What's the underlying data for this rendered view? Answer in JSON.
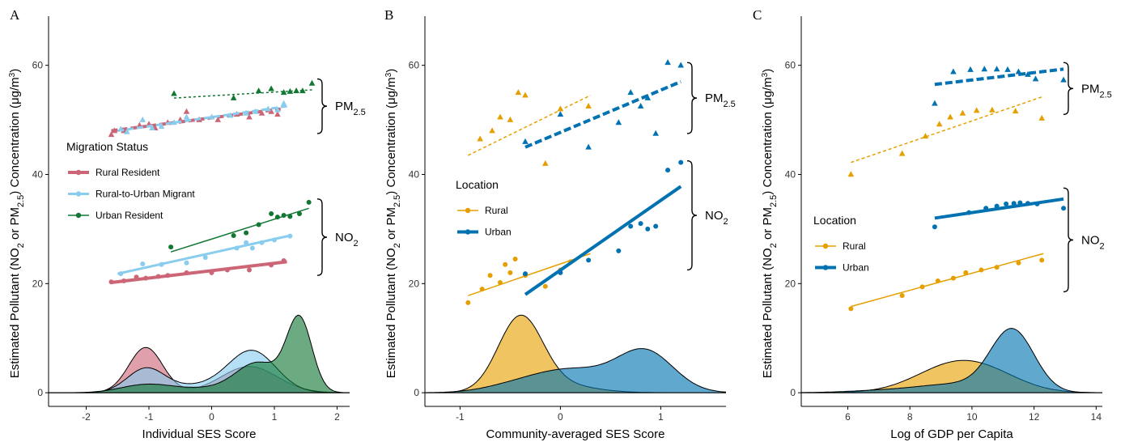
{
  "y_axis_label": "Estimated Pollutant (NO2 or PM2.5) Concentration (μg/m3)",
  "colors": {
    "rural_resident": "#CC6677",
    "migrant": "#88CCEE",
    "urban_resident": "#117733",
    "rural": "#E69F00",
    "urban": "#0072B2"
  },
  "chart_data": [
    {
      "panel": "A",
      "type": "scatter",
      "xlabel": "Individual SES Score",
      "xlim": [
        -2.6,
        2.2
      ],
      "ylim": [
        -2.5,
        69
      ],
      "xticks": [
        -2,
        -1,
        0,
        1,
        2
      ],
      "yticks": [
        0,
        20,
        40,
        60
      ],
      "legend": {
        "title": "Migration Status",
        "position": "left-center",
        "items": [
          "Rural Resident",
          "Rural-to-Urban Migrant",
          "Urban Resident"
        ]
      },
      "brackets": [
        {
          "label": "PM2.5",
          "y_range": [
            47.5,
            57.5
          ]
        },
        {
          "label": "NO2",
          "y_range": [
            21.5,
            35.5
          ]
        }
      ],
      "series": [
        {
          "name": "Rural Resident",
          "pollutant": "PM2.5",
          "color": "#CC6677",
          "points": [
            [
              -1.6,
              47.3
            ],
            [
              -1.55,
              48.0
            ],
            [
              -1.4,
              48.0
            ],
            [
              -1.15,
              49.0
            ],
            [
              -1.0,
              49.2
            ],
            [
              -0.9,
              48.5
            ],
            [
              -0.7,
              49.5
            ],
            [
              -0.5,
              50.0
            ],
            [
              -0.4,
              51.5
            ],
            [
              -0.2,
              50.0
            ],
            [
              0.1,
              50.0
            ],
            [
              0.4,
              51.0
            ],
            [
              0.6,
              50.5
            ],
            [
              0.8,
              51.2
            ],
            [
              0.95,
              51.5
            ],
            [
              1.05,
              51.0
            ]
          ],
          "fit": [
            [
              -1.6,
              48.0
            ],
            [
              1.1,
              52.0
            ]
          ]
        },
        {
          "name": "Rural-to-Urban Migrant",
          "pollutant": "PM2.5",
          "color": "#88CCEE",
          "points": [
            [
              -1.45,
              48.3
            ],
            [
              -1.35,
              47.8
            ],
            [
              -1.1,
              50.0
            ],
            [
              -0.95,
              48.5
            ],
            [
              -0.8,
              48.8
            ],
            [
              -0.6,
              49.5
            ],
            [
              -0.4,
              50.5
            ],
            [
              0.0,
              50.5
            ],
            [
              0.3,
              50.8
            ],
            [
              0.55,
              51.2
            ],
            [
              0.7,
              51.5
            ],
            [
              0.9,
              52.0
            ],
            [
              1.05,
              51.8
            ],
            [
              1.15,
              53.0
            ]
          ],
          "fit": [
            [
              -1.5,
              48.0
            ],
            [
              1.2,
              52.5
            ]
          ]
        },
        {
          "name": "Urban Resident",
          "pollutant": "PM2.5",
          "color": "#117733",
          "points": [
            [
              -0.6,
              54.8
            ],
            [
              0.35,
              54.0
            ],
            [
              0.75,
              55.3
            ],
            [
              0.95,
              55.7
            ],
            [
              1.15,
              55.0
            ],
            [
              1.25,
              55.2
            ],
            [
              1.35,
              55.3
            ],
            [
              1.45,
              55.3
            ],
            [
              1.6,
              56.7
            ]
          ],
          "fit": [
            [
              -0.6,
              54.0
            ],
            [
              1.6,
              55.5
            ]
          ]
        },
        {
          "name": "Rural Resident",
          "pollutant": "NO2",
          "color": "#CC6677",
          "points": [
            [
              -1.6,
              20.3
            ],
            [
              -1.4,
              20.5
            ],
            [
              -1.2,
              21.2
            ],
            [
              -1.05,
              21.0
            ],
            [
              -0.85,
              21.3
            ],
            [
              -0.7,
              21.5
            ],
            [
              -0.4,
              22.0
            ],
            [
              0.0,
              22.0
            ],
            [
              0.25,
              22.5
            ],
            [
              0.6,
              22.5
            ],
            [
              0.95,
              23.4
            ],
            [
              1.15,
              24.2
            ]
          ],
          "fit": [
            [
              -1.6,
              20.2
            ],
            [
              1.2,
              24.0
            ]
          ]
        },
        {
          "name": "Rural-to-Urban Migrant",
          "pollutant": "NO2",
          "color": "#88CCEE",
          "points": [
            [
              -1.45,
              21.8
            ],
            [
              -1.1,
              23.6
            ],
            [
              -0.8,
              23.5
            ],
            [
              -0.4,
              23.8
            ],
            [
              -0.1,
              24.8
            ],
            [
              0.4,
              26.5
            ],
            [
              0.55,
              27.5
            ],
            [
              0.65,
              26.5
            ],
            [
              0.8,
              27.5
            ],
            [
              1.0,
              28.0
            ],
            [
              1.25,
              28.7
            ]
          ],
          "fit": [
            [
              -1.5,
              21.8
            ],
            [
              1.25,
              28.8
            ]
          ]
        },
        {
          "name": "Urban Resident",
          "pollutant": "NO2",
          "color": "#117733",
          "points": [
            [
              -0.65,
              26.7
            ],
            [
              0.35,
              28.8
            ],
            [
              0.55,
              29.3
            ],
            [
              0.75,
              30.8
            ],
            [
              0.95,
              32.8
            ],
            [
              1.05,
              32.2
            ],
            [
              1.15,
              32.5
            ],
            [
              1.25,
              32.3
            ],
            [
              1.4,
              32.8
            ],
            [
              1.55,
              34.9
            ]
          ],
          "fit": [
            [
              -0.65,
              25.8
            ],
            [
              1.55,
              33.8
            ]
          ]
        }
      ],
      "densities": [
        {
          "name": "Rural Resident",
          "color": "#CC6677",
          "peaks": [
            [
              -1.05,
              8.3,
              0.27
            ],
            [
              0.6,
              4.8,
              0.45
            ]
          ]
        },
        {
          "name": "Rural-to-Urban Migrant",
          "color": "#88CCEE",
          "peaks": [
            [
              -1.05,
              4.3,
              0.3
            ],
            [
              0.65,
              7.5,
              0.38
            ],
            [
              -0.2,
              1.2,
              0.5
            ]
          ]
        },
        {
          "name": "Urban Resident",
          "color": "#117733",
          "peaks": [
            [
              -1.05,
              1.4,
              0.4
            ],
            [
              0.75,
              5.2,
              0.35
            ],
            [
              1.4,
              13.2,
              0.2
            ],
            [
              0.0,
              0.8,
              0.6
            ]
          ]
        }
      ]
    },
    {
      "panel": "B",
      "type": "scatter",
      "xlabel": "Community-averaged SES Score",
      "xlim": [
        -1.35,
        1.65
      ],
      "ylim": [
        -2.5,
        69
      ],
      "xticks": [
        -1,
        0,
        1
      ],
      "yticks": [
        0,
        20,
        40,
        60
      ],
      "legend": {
        "title": "Location",
        "position": "left-center",
        "items": [
          "Rural",
          "Urban"
        ]
      },
      "brackets": [
        {
          "label": "PM2.5",
          "y_range": [
            47.5,
            60.5
          ]
        },
        {
          "label": "NO2",
          "y_range": [
            22.5,
            42.5
          ]
        }
      ],
      "series": [
        {
          "name": "Rural",
          "pollutant": "PM2.5",
          "color": "#E69F00",
          "points": [
            [
              -0.8,
              46.5
            ],
            [
              -0.68,
              48.0
            ],
            [
              -0.6,
              50.5
            ],
            [
              -0.5,
              50.0
            ],
            [
              -0.42,
              55.0
            ],
            [
              -0.35,
              54.5
            ],
            [
              -0.15,
              42.0
            ],
            [
              0.0,
              52.0
            ],
            [
              0.28,
              52.5
            ]
          ],
          "fit": [
            [
              -0.92,
              43.5
            ],
            [
              0.3,
              54.5
            ]
          ]
        },
        {
          "name": "Urban",
          "pollutant": "PM2.5",
          "color": "#0072B2",
          "points": [
            [
              -0.35,
              46.0
            ],
            [
              0.0,
              51.0
            ],
            [
              0.28,
              45.0
            ],
            [
              0.58,
              49.5
            ],
            [
              0.7,
              55.0
            ],
            [
              0.8,
              52.5
            ],
            [
              0.87,
              54.0
            ],
            [
              0.95,
              47.5
            ],
            [
              1.07,
              60.5
            ],
            [
              1.2,
              60.0
            ]
          ],
          "fit": [
            [
              -0.35,
              45.0
            ],
            [
              1.2,
              57.0
            ]
          ]
        },
        {
          "name": "Rural",
          "pollutant": "NO2",
          "color": "#E69F00",
          "points": [
            [
              -0.92,
              16.5
            ],
            [
              -0.78,
              19.0
            ],
            [
              -0.7,
              21.5
            ],
            [
              -0.6,
              20.2
            ],
            [
              -0.55,
              23.5
            ],
            [
              -0.5,
              22.0
            ],
            [
              -0.45,
              24.5
            ],
            [
              -0.35,
              21.5
            ],
            [
              -0.15,
              19.5
            ],
            [
              0.0,
              22.5
            ],
            [
              0.1,
              24.0
            ]
          ],
          "fit": [
            [
              -0.92,
              17.8
            ],
            [
              0.3,
              25.5
            ]
          ]
        },
        {
          "name": "Urban",
          "pollutant": "NO2",
          "color": "#0072B2",
          "points": [
            [
              -0.35,
              21.8
            ],
            [
              0.0,
              22.0
            ],
            [
              0.28,
              24.3
            ],
            [
              0.58,
              26.0
            ],
            [
              0.7,
              30.5
            ],
            [
              0.8,
              31.0
            ],
            [
              0.87,
              30.0
            ],
            [
              0.95,
              30.5
            ],
            [
              1.07,
              40.8
            ],
            [
              1.2,
              42.2
            ]
          ],
          "fit": [
            [
              -0.35,
              18.0
            ],
            [
              1.2,
              37.8
            ]
          ]
        }
      ],
      "densities": [
        {
          "name": "Rural",
          "color": "#E69F00",
          "peaks": [
            [
              -0.4,
              13.3,
              0.22
            ],
            [
              -0.05,
              1.5,
              0.35
            ]
          ]
        },
        {
          "name": "Urban",
          "color": "#0072B2",
          "peaks": [
            [
              0.85,
              7.3,
              0.28
            ],
            [
              0.1,
              4.2,
              0.4
            ],
            [
              -0.5,
              0.8,
              0.3
            ]
          ]
        }
      ]
    },
    {
      "panel": "C",
      "type": "scatter",
      "xlabel": "Log of GDP per Capita",
      "xlim": [
        4.5,
        14.2
      ],
      "ylim": [
        -2.5,
        69
      ],
      "xticks": [
        6,
        8,
        10,
        12,
        14
      ],
      "yticks": [
        0,
        20,
        40,
        60
      ],
      "legend": {
        "title": "Location",
        "position": "left-center",
        "items": [
          "Rural",
          "Urban"
        ]
      },
      "brackets": [
        {
          "label": "PM2.5",
          "y_range": [
            51.0,
            60.5
          ]
        },
        {
          "label": "NO2",
          "y_range": [
            18.5,
            37.5
          ]
        }
      ],
      "series": [
        {
          "name": "Rural",
          "pollutant": "PM2.5",
          "color": "#E69F00",
          "points": [
            [
              6.1,
              40.0
            ],
            [
              7.75,
              43.8
            ],
            [
              8.5,
              47.0
            ],
            [
              8.95,
              49.2
            ],
            [
              9.3,
              50.5
            ],
            [
              9.7,
              51.2
            ],
            [
              10.15,
              51.7
            ],
            [
              10.65,
              51.8
            ],
            [
              11.4,
              51.6
            ],
            [
              12.25,
              50.3
            ]
          ],
          "fit": [
            [
              6.1,
              42.2
            ],
            [
              12.3,
              54.3
            ]
          ]
        },
        {
          "name": "Urban",
          "pollutant": "PM2.5",
          "color": "#0072B2",
          "points": [
            [
              8.8,
              53.0
            ],
            [
              9.4,
              58.8
            ],
            [
              9.95,
              59.2
            ],
            [
              10.4,
              59.3
            ],
            [
              10.8,
              59.3
            ],
            [
              11.15,
              59.2
            ],
            [
              11.5,
              58.8
            ],
            [
              11.8,
              58.3
            ],
            [
              12.05,
              57.5
            ],
            [
              12.95,
              57.3
            ]
          ],
          "fit": [
            [
              8.8,
              56.5
            ],
            [
              12.95,
              59.3
            ]
          ]
        },
        {
          "name": "Rural",
          "pollutant": "NO2",
          "color": "#E69F00",
          "points": [
            [
              6.1,
              15.4
            ],
            [
              7.75,
              17.8
            ],
            [
              8.4,
              19.4
            ],
            [
              8.9,
              20.5
            ],
            [
              9.4,
              21.0
            ],
            [
              9.8,
              22.0
            ],
            [
              10.3,
              22.5
            ],
            [
              10.8,
              23.0
            ],
            [
              11.5,
              23.8
            ],
            [
              12.25,
              24.3
            ]
          ],
          "fit": [
            [
              6.1,
              15.8
            ],
            [
              12.3,
              25.5
            ]
          ]
        },
        {
          "name": "Urban",
          "pollutant": "NO2",
          "color": "#0072B2",
          "points": [
            [
              8.8,
              30.4
            ],
            [
              9.9,
              33.0
            ],
            [
              10.45,
              33.8
            ],
            [
              10.8,
              34.2
            ],
            [
              11.1,
              34.6
            ],
            [
              11.35,
              34.7
            ],
            [
              11.55,
              34.8
            ],
            [
              11.8,
              34.7
            ],
            [
              12.1,
              34.6
            ],
            [
              12.95,
              33.8
            ]
          ],
          "fit": [
            [
              8.8,
              32.0
            ],
            [
              12.95,
              35.5
            ]
          ]
        }
      ],
      "densities": [
        {
          "name": "Rural",
          "color": "#E69F00",
          "peaks": [
            [
              9.6,
              5.6,
              1.3
            ],
            [
              11.0,
              0.8,
              1.0
            ]
          ]
        },
        {
          "name": "Urban",
          "color": "#0072B2",
          "peaks": [
            [
              11.3,
              11.3,
              0.7
            ],
            [
              9.5,
              1.5,
              1.2
            ],
            [
              7.2,
              0.4,
              1.2
            ]
          ]
        }
      ]
    }
  ]
}
